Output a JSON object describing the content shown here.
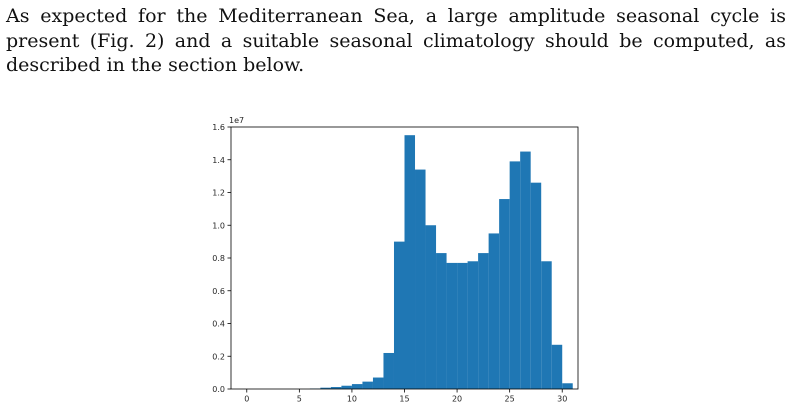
{
  "document": {
    "paragraph_lines": [
      "As expected for the Mediterranean Sea, a large amplitude seasonal cycle is",
      "present (Fig. 2) and a suitable seasonal climatology should be computed, as",
      "described in the section below."
    ]
  },
  "chart_data": {
    "type": "bar",
    "title": "",
    "xlabel": "",
    "ylabel": "",
    "y_offset_label": "1e7",
    "xlim": [
      -1.5,
      31.5
    ],
    "ylim": [
      0,
      1.6
    ],
    "x_ticks": [
      0,
      5,
      10,
      15,
      20,
      25,
      30
    ],
    "x_tick_labels": [
      "0",
      "5",
      "10",
      "15",
      "20",
      "25",
      "30"
    ],
    "y_ticks": [
      0,
      0.2,
      0.4,
      0.6,
      0.8,
      1.0,
      1.2,
      1.4,
      1.6
    ],
    "y_tick_labels": [
      "0.0",
      "0.2",
      "0.4",
      "0.6",
      "0.8",
      "1.0",
      "1.2",
      "1.4",
      "1.6"
    ],
    "bin_edges": [
      6,
      7,
      8,
      9,
      10,
      11,
      12,
      13,
      14,
      15,
      16,
      17,
      18,
      19,
      20,
      21,
      22,
      23,
      24,
      25,
      26,
      27,
      28,
      29,
      30,
      31
    ],
    "values": [
      0.003,
      0.008,
      0.012,
      0.02,
      0.03,
      0.045,
      0.07,
      0.22,
      0.9,
      1.55,
      1.34,
      1.0,
      0.83,
      0.77,
      0.77,
      0.78,
      0.83,
      0.95,
      1.16,
      1.39,
      1.45,
      1.26,
      0.78,
      0.27,
      0.035
    ],
    "grid": false,
    "legend": "none",
    "bar_color": "#1f77b4"
  }
}
